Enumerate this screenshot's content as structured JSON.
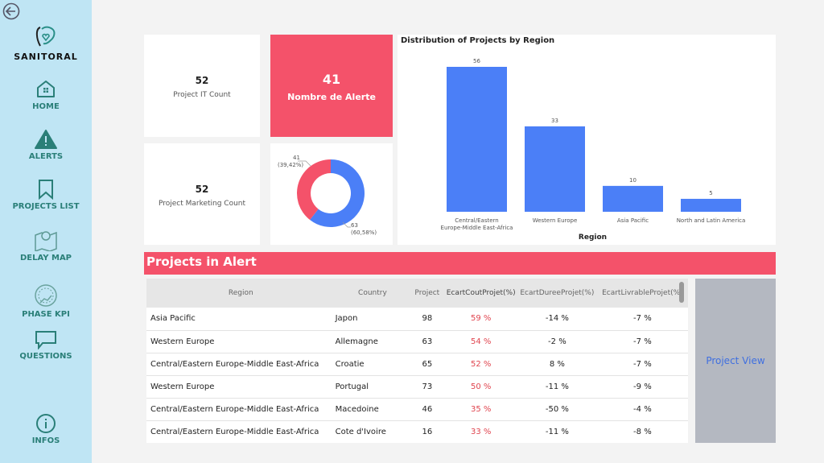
{
  "brand": "SANITORAL",
  "nav": [
    {
      "label": "HOME",
      "icon": "home-icon"
    },
    {
      "label": "ALERTS",
      "icon": "alert-icon"
    },
    {
      "label": "PROJECTS LIST",
      "icon": "bookmark-icon"
    },
    {
      "label": "DELAY MAP",
      "icon": "map-icon"
    },
    {
      "label": "PHASE KPI",
      "icon": "gauge-icon"
    },
    {
      "label": "QUESTIONS",
      "icon": "chat-icon"
    },
    {
      "label": "INFOS",
      "icon": "info-icon"
    }
  ],
  "kpi": {
    "it_count": "52",
    "it_label": "Project IT Count",
    "mk_count": "52",
    "mk_label": "Project Marketing Count",
    "alert_count": "41",
    "alert_label": "Nombre de Alerte"
  },
  "donut": {
    "slices": [
      {
        "value": 41,
        "label": "41",
        "pct": "(39,42%)",
        "color": "#f4526a"
      },
      {
        "value": 63,
        "label": "63",
        "pct": "(60,58%)",
        "color": "#4b7ff7"
      }
    ]
  },
  "chart_data": {
    "type": "bar",
    "title": "Distribution of Projects by Region",
    "xlabel": "Region",
    "ylabel": "",
    "categories": [
      "Central/Eastern Europe-Middle East-Africa",
      "Western Europe",
      "Asia Pacific",
      "North and Latin America"
    ],
    "values": [
      56,
      33,
      10,
      5
    ],
    "color": "#4b7ff7",
    "ylim": [
      0,
      56
    ]
  },
  "alerts": {
    "title": "Projects in Alert",
    "columns": [
      "Region",
      "Country",
      "Project",
      "EcartCoutProjet(%)",
      "EcartDureeProjet(%)",
      "EcartLivrableProjet(%)"
    ],
    "rows": [
      [
        "Asia Pacific",
        "Japon",
        "98",
        "59 %",
        "-14 %",
        "-7 %"
      ],
      [
        "Western Europe",
        "Allemagne",
        "63",
        "54 %",
        "-2 %",
        "-7 %"
      ],
      [
        "Central/Eastern Europe-Middle East-Africa",
        "Croatie",
        "65",
        "52 %",
        "8 %",
        "-7 %"
      ],
      [
        "Western Europe",
        "Portugal",
        "73",
        "50 %",
        "-11 %",
        "-9 %"
      ],
      [
        "Central/Eastern Europe-Middle East-Africa",
        "Macedoine",
        "46",
        "35 %",
        "-50 %",
        "-4 %"
      ],
      [
        "Central/Eastern Europe-Middle East-Africa",
        "Cote d'Ivoire",
        "16",
        "33 %",
        "-11 %",
        "-8 %"
      ]
    ]
  },
  "project_view": "Project View"
}
